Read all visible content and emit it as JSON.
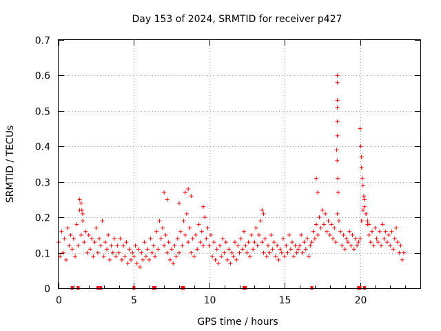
{
  "chart_data": {
    "type": "scatter",
    "title": "Day 153 of 2024, SRMTID for receiver p427",
    "xlabel": "GPS time / hours",
    "ylabel": "SRMTID / TECUs",
    "xlim": [
      0,
      24
    ],
    "ylim": [
      0,
      0.7
    ],
    "xticks": [
      0,
      5,
      10,
      15,
      20
    ],
    "yticks": [
      0,
      0.1,
      0.2,
      0.3,
      0.4,
      0.5,
      0.6,
      0.7
    ],
    "xtick_labels": [
      "0",
      "5",
      "10",
      "15",
      "20"
    ],
    "ytick_labels": [
      "0",
      "0.1",
      "0.2",
      "0.3",
      "0.4",
      "0.5",
      "0.6",
      "0.7"
    ],
    "grid": true,
    "marker": "+",
    "series": [
      {
        "name": "SRMTID",
        "color": "#ff0000",
        "x": [
          0.0,
          0.1,
          0.2,
          0.3,
          0.4,
          0.5,
          0.6,
          0.7,
          0.8,
          0.9,
          1.0,
          1.1,
          1.2,
          1.3,
          1.4,
          1.5,
          1.6,
          1.7,
          1.8,
          1.9,
          2.0,
          2.1,
          2.2,
          2.3,
          2.4,
          2.5,
          2.6,
          2.7,
          2.8,
          2.9,
          3.0,
          3.1,
          3.2,
          3.3,
          3.4,
          3.5,
          3.6,
          3.7,
          3.8,
          3.9,
          4.0,
          4.1,
          4.2,
          4.3,
          4.4,
          4.5,
          4.6,
          4.7,
          4.8,
          4.9,
          5.0,
          5.1,
          5.2,
          5.3,
          5.4,
          5.5,
          5.6,
          5.7,
          5.8,
          5.9,
          6.0,
          6.1,
          6.2,
          6.3,
          6.4,
          6.5,
          6.6,
          6.7,
          6.8,
          6.9,
          7.0,
          7.1,
          7.2,
          7.3,
          7.4,
          7.5,
          7.6,
          7.7,
          7.8,
          7.9,
          8.0,
          8.1,
          8.2,
          8.3,
          8.4,
          8.5,
          8.6,
          8.7,
          8.8,
          8.9,
          9.0,
          9.1,
          9.2,
          9.3,
          9.4,
          9.5,
          9.6,
          9.7,
          9.8,
          9.9,
          10.0,
          10.1,
          10.2,
          10.3,
          10.4,
          10.5,
          10.6,
          10.7,
          10.8,
          10.9,
          11.0,
          11.1,
          11.2,
          11.3,
          11.4,
          11.5,
          11.6,
          11.7,
          11.8,
          11.9,
          12.0,
          12.1,
          12.2,
          12.3,
          12.4,
          12.5,
          12.6,
          12.7,
          12.8,
          12.9,
          13.0,
          13.1,
          13.2,
          13.3,
          13.4,
          13.5,
          13.6,
          13.7,
          13.8,
          13.9,
          14.0,
          14.1,
          14.2,
          14.3,
          14.4,
          14.5,
          14.6,
          14.7,
          14.8,
          14.9,
          15.0,
          15.1,
          15.2,
          15.3,
          15.4,
          15.5,
          15.6,
          15.7,
          15.8,
          15.9,
          16.0,
          16.1,
          16.2,
          16.3,
          16.4,
          16.5,
          16.6,
          16.7,
          16.8,
          16.9,
          17.0,
          17.1,
          17.2,
          17.3,
          17.4,
          17.5,
          17.6,
          17.7,
          17.8,
          17.9,
          18.0,
          18.1,
          18.2,
          18.3,
          18.4,
          18.5,
          18.6,
          18.7,
          18.8,
          18.9,
          19.0,
          19.1,
          19.2,
          19.3,
          19.4,
          19.5,
          19.6,
          19.7,
          19.8,
          19.9,
          20.0,
          20.1,
          20.2,
          20.3,
          20.4,
          20.5,
          20.6,
          20.7,
          20.8,
          20.9,
          21.0,
          21.1,
          21.2,
          21.3,
          21.4,
          21.5,
          21.6,
          21.7,
          21.8,
          21.9,
          22.0,
          22.1,
          22.2,
          22.3,
          22.4,
          22.5,
          22.6,
          22.7,
          22.8,
          22.9,
          18.5,
          18.5,
          18.5,
          18.5,
          18.5,
          18.5,
          18.45,
          18.48,
          18.52,
          18.55,
          20.0,
          20.05,
          20.1,
          20.1,
          20.15,
          20.2,
          20.25,
          20.3,
          1.4,
          1.5,
          1.55,
          1.6,
          7.0,
          7.2,
          8.0,
          8.4,
          8.6,
          8.8,
          9.6,
          13.5,
          13.6,
          17.1,
          17.2,
          20.4,
          20.5,
          20.6
        ],
        "y": [
          0.13,
          0.09,
          0.16,
          0.1,
          0.14,
          0.08,
          0.17,
          0.12,
          0.15,
          0.11,
          0.14,
          0.09,
          0.18,
          0.12,
          0.22,
          0.15,
          0.19,
          0.13,
          0.16,
          0.1,
          0.15,
          0.11,
          0.14,
          0.09,
          0.13,
          0.17,
          0.1,
          0.14,
          0.12,
          0.19,
          0.09,
          0.13,
          0.11,
          0.15,
          0.08,
          0.12,
          0.1,
          0.14,
          0.09,
          0.12,
          0.1,
          0.14,
          0.08,
          0.12,
          0.09,
          0.13,
          0.07,
          0.11,
          0.08,
          0.1,
          0.09,
          0.12,
          0.07,
          0.11,
          0.06,
          0.1,
          0.08,
          0.13,
          0.09,
          0.11,
          0.08,
          0.14,
          0.1,
          0.12,
          0.09,
          0.16,
          0.11,
          0.19,
          0.14,
          0.17,
          0.12,
          0.15,
          0.1,
          0.13,
          0.08,
          0.11,
          0.07,
          0.12,
          0.09,
          0.14,
          0.1,
          0.16,
          0.12,
          0.19,
          0.15,
          0.21,
          0.13,
          0.17,
          0.1,
          0.14,
          0.09,
          0.15,
          0.11,
          0.18,
          0.13,
          0.16,
          0.12,
          0.2,
          0.14,
          0.17,
          0.12,
          0.15,
          0.09,
          0.13,
          0.08,
          0.11,
          0.07,
          0.12,
          0.09,
          0.14,
          0.1,
          0.13,
          0.08,
          0.11,
          0.07,
          0.1,
          0.09,
          0.13,
          0.08,
          0.12,
          0.1,
          0.14,
          0.11,
          0.16,
          0.12,
          0.1,
          0.13,
          0.09,
          0.15,
          0.11,
          0.13,
          0.17,
          0.12,
          0.15,
          0.19,
          0.13,
          0.1,
          0.14,
          0.09,
          0.12,
          0.1,
          0.15,
          0.11,
          0.13,
          0.09,
          0.12,
          0.08,
          0.11,
          0.1,
          0.14,
          0.09,
          0.12,
          0.1,
          0.15,
          0.11,
          0.13,
          0.09,
          0.12,
          0.1,
          0.11,
          0.12,
          0.15,
          0.1,
          0.13,
          0.11,
          0.14,
          0.09,
          0.12,
          0.13,
          0.16,
          0.14,
          0.18,
          0.15,
          0.2,
          0.17,
          0.22,
          0.18,
          0.21,
          0.16,
          0.19,
          0.15,
          0.18,
          0.14,
          0.17,
          0.13,
          0.21,
          0.19,
          0.16,
          0.12,
          0.15,
          0.11,
          0.14,
          0.13,
          0.16,
          0.12,
          0.15,
          0.11,
          0.14,
          0.12,
          0.13,
          0.14,
          0.19,
          0.22,
          0.25,
          0.21,
          0.18,
          0.15,
          0.13,
          0.16,
          0.12,
          0.17,
          0.14,
          0.13,
          0.16,
          0.12,
          0.18,
          0.14,
          0.16,
          0.13,
          0.15,
          0.12,
          0.16,
          0.11,
          0.14,
          0.17,
          0.13,
          0.1,
          0.12,
          0.08,
          0.1,
          0.6,
          0.58,
          0.53,
          0.51,
          0.47,
          0.43,
          0.39,
          0.36,
          0.31,
          0.27,
          0.45,
          0.4,
          0.37,
          0.34,
          0.31,
          0.29,
          0.26,
          0.23,
          0.25,
          0.24,
          0.22,
          0.21,
          0.27,
          0.25,
          0.24,
          0.27,
          0.28,
          0.26,
          0.23,
          0.22,
          0.21,
          0.31,
          0.27,
          0.21,
          0.19,
          0.18
        ]
      }
    ],
    "bottom_markers_x": [
      0.9,
      1.3,
      2.6,
      2.8,
      5.0,
      6.3,
      6.4,
      8.2,
      8.3,
      12.3,
      12.4,
      16.8,
      19.9,
      20.0,
      20.3
    ]
  }
}
